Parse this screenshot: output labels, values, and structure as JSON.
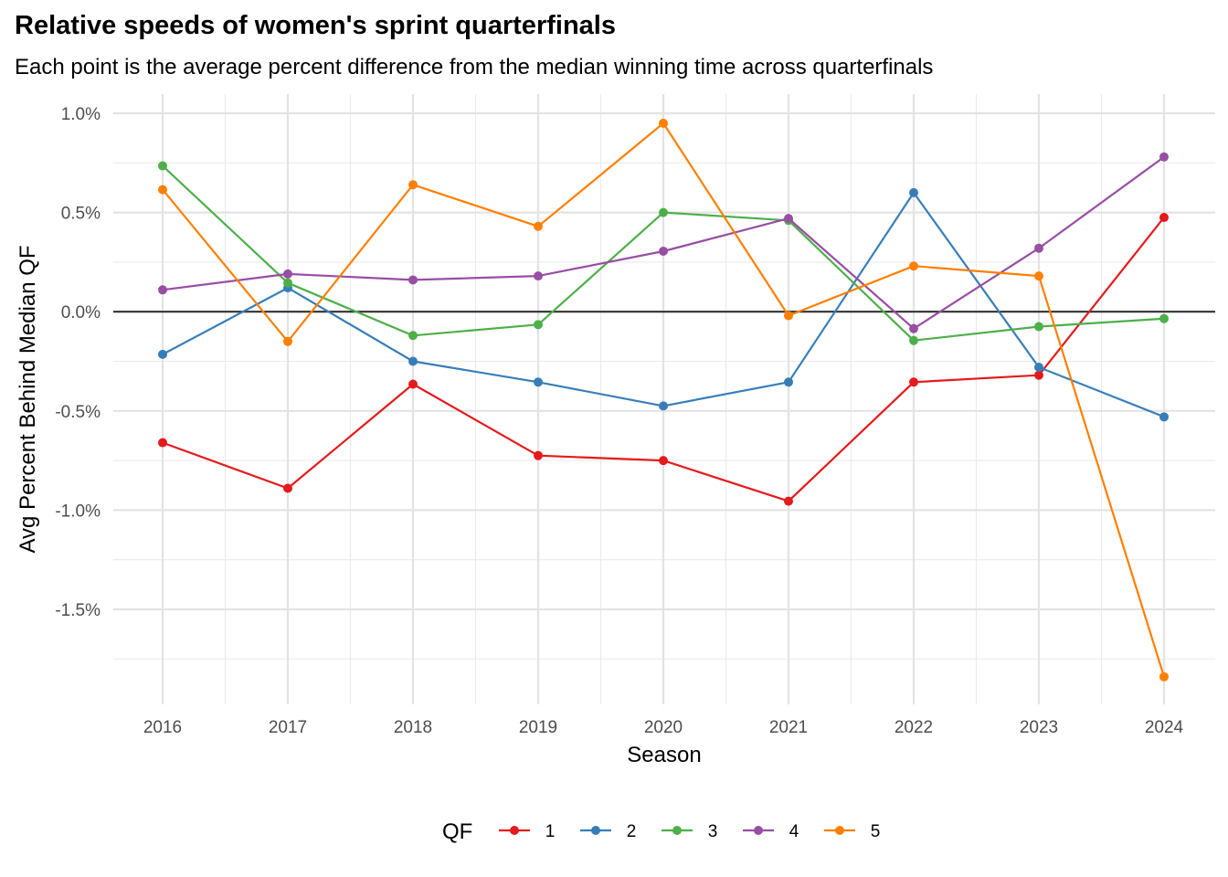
{
  "chart_data": {
    "type": "line",
    "title": "Relative speeds of women's sprint quarterfinals",
    "subtitle": "Each point is the average percent difference from the median winning time across quarterfinals",
    "xlabel": "Season",
    "ylabel": "Avg Percent Behind Median QF",
    "categories": [
      "2016",
      "2017",
      "2018",
      "2019",
      "2020",
      "2021",
      "2022",
      "2023",
      "2024"
    ],
    "y_ticks": [
      1.0,
      0.5,
      0.0,
      -0.5,
      -1.0,
      -1.5
    ],
    "y_tick_labels": [
      "1.0%",
      "0.5%",
      "0.0%",
      "-0.5%",
      "-1.0%",
      "-1.5%"
    ],
    "ylim": [
      -1.9,
      1.05
    ],
    "reference_line": 0,
    "grid": true,
    "legend": {
      "title": "QF",
      "position": "bottom"
    },
    "series": [
      {
        "name": "1",
        "color": "#E41A1C",
        "values": [
          -0.66,
          -0.89,
          -0.365,
          -0.725,
          -0.75,
          -0.955,
          -0.355,
          -0.32,
          0.475
        ]
      },
      {
        "name": "2",
        "color": "#377EB8",
        "values": [
          -0.215,
          0.12,
          -0.25,
          -0.355,
          -0.475,
          -0.355,
          0.6,
          -0.28,
          -0.53
        ]
      },
      {
        "name": "3",
        "color": "#4DAF4A",
        "values": [
          0.735,
          0.145,
          -0.12,
          -0.065,
          0.5,
          0.46,
          -0.145,
          -0.075,
          -0.035
        ]
      },
      {
        "name": "4",
        "color": "#984EA3",
        "values": [
          0.11,
          0.19,
          0.16,
          0.18,
          0.305,
          0.47,
          -0.085,
          0.32,
          0.78
        ]
      },
      {
        "name": "5",
        "color": "#FF7F00",
        "values": [
          0.615,
          -0.15,
          0.64,
          0.43,
          0.95,
          -0.02,
          0.23,
          0.18,
          -1.84
        ]
      }
    ]
  }
}
